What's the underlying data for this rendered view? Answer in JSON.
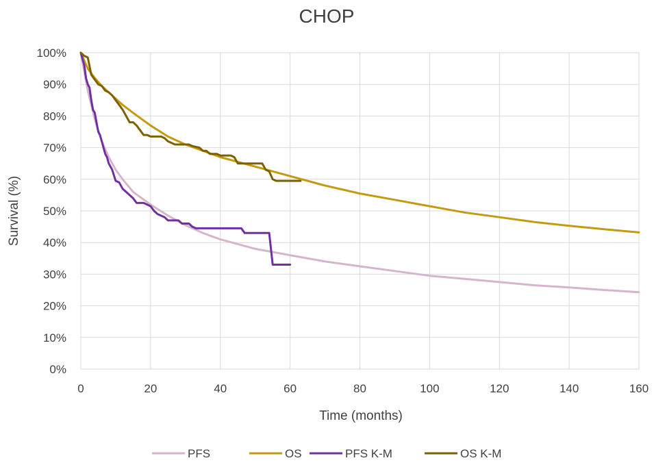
{
  "chart_data": {
    "type": "line",
    "title": "CHOP",
    "xlabel": "Time (months)",
    "ylabel": "Survival (%)",
    "xlim": [
      0,
      160
    ],
    "ylim": [
      0,
      100
    ],
    "x_ticks": [
      0,
      20,
      40,
      60,
      80,
      100,
      120,
      140,
      160
    ],
    "y_ticks": [
      0,
      10,
      20,
      30,
      40,
      50,
      60,
      70,
      80,
      90,
      100
    ],
    "y_tick_suffix": "%",
    "grid": true,
    "legend_position": "bottom",
    "series": [
      {
        "name": "PFS",
        "color": "#d5b4cc",
        "points": [
          [
            0,
            100
          ],
          [
            2,
            88
          ],
          [
            4,
            79
          ],
          [
            6,
            72
          ],
          [
            8,
            67
          ],
          [
            10,
            63
          ],
          [
            12,
            60
          ],
          [
            15,
            56
          ],
          [
            20,
            52
          ],
          [
            25,
            48.5
          ],
          [
            30,
            45.5
          ],
          [
            35,
            43
          ],
          [
            40,
            41
          ],
          [
            50,
            38
          ],
          [
            60,
            36
          ],
          [
            70,
            34
          ],
          [
            80,
            32.5
          ],
          [
            90,
            31
          ],
          [
            100,
            29.5
          ],
          [
            110,
            28.5
          ],
          [
            120,
            27.5
          ],
          [
            130,
            26.5
          ],
          [
            140,
            25.8
          ],
          [
            150,
            25
          ],
          [
            160,
            24.3
          ]
        ]
      },
      {
        "name": "OS",
        "color": "#c49a10",
        "points": [
          [
            0,
            100
          ],
          [
            2,
            95
          ],
          [
            4,
            92
          ],
          [
            6,
            89.5
          ],
          [
            8,
            87.5
          ],
          [
            10,
            85.5
          ],
          [
            12,
            83.5
          ],
          [
            15,
            81
          ],
          [
            20,
            77
          ],
          [
            25,
            73.5
          ],
          [
            30,
            71
          ],
          [
            35,
            69
          ],
          [
            40,
            67
          ],
          [
            50,
            64
          ],
          [
            60,
            61
          ],
          [
            70,
            58
          ],
          [
            80,
            55.5
          ],
          [
            90,
            53.5
          ],
          [
            100,
            51.5
          ],
          [
            110,
            49.5
          ],
          [
            120,
            48
          ],
          [
            130,
            46.5
          ],
          [
            140,
            45.3
          ],
          [
            150,
            44.2
          ],
          [
            160,
            43.2
          ]
        ]
      },
      {
        "name": "PFS K-M",
        "color": "#7030a0",
        "points": [
          [
            0,
            100
          ],
          [
            1,
            96
          ],
          [
            1.5,
            92
          ],
          [
            2,
            90
          ],
          [
            2.5,
            89
          ],
          [
            3,
            85
          ],
          [
            3.5,
            82
          ],
          [
            4,
            81
          ],
          [
            4.5,
            78
          ],
          [
            5,
            75
          ],
          [
            5.5,
            74
          ],
          [
            6,
            72
          ],
          [
            6.5,
            70
          ],
          [
            7,
            68
          ],
          [
            7.5,
            67
          ],
          [
            8,
            65
          ],
          [
            9,
            63
          ],
          [
            10,
            59.5
          ],
          [
            11,
            59
          ],
          [
            12,
            57
          ],
          [
            13,
            56
          ],
          [
            14,
            55
          ],
          [
            15,
            54
          ],
          [
            16,
            52.5
          ],
          [
            18,
            52.5
          ],
          [
            20,
            51.5
          ],
          [
            21,
            50
          ],
          [
            22,
            49
          ],
          [
            24,
            48
          ],
          [
            25,
            47
          ],
          [
            28,
            47
          ],
          [
            29,
            46
          ],
          [
            31,
            46
          ],
          [
            32,
            45
          ],
          [
            33,
            44.5
          ],
          [
            46,
            44.5
          ],
          [
            47,
            43
          ],
          [
            54,
            43
          ],
          [
            55,
            33
          ],
          [
            60,
            33
          ]
        ]
      },
      {
        "name": "OS K-M",
        "color": "#7f6000",
        "points": [
          [
            0,
            100
          ],
          [
            1,
            99
          ],
          [
            2,
            98.5
          ],
          [
            3,
            93
          ],
          [
            4,
            91.5
          ],
          [
            5,
            90
          ],
          [
            6,
            89.5
          ],
          [
            7,
            88
          ],
          [
            8,
            87.5
          ],
          [
            9,
            86.5
          ],
          [
            10,
            85
          ],
          [
            11,
            83.5
          ],
          [
            12,
            82
          ],
          [
            13,
            80
          ],
          [
            14,
            78
          ],
          [
            15,
            78
          ],
          [
            16,
            77
          ],
          [
            17,
            75.5
          ],
          [
            18,
            74
          ],
          [
            19,
            74
          ],
          [
            20,
            73.5
          ],
          [
            23,
            73.5
          ],
          [
            24,
            73
          ],
          [
            25,
            72
          ],
          [
            27,
            71
          ],
          [
            31,
            71
          ],
          [
            32,
            70.5
          ],
          [
            34,
            70
          ],
          [
            35,
            69
          ],
          [
            36,
            69
          ],
          [
            37,
            68
          ],
          [
            39,
            68
          ],
          [
            40,
            67.5
          ],
          [
            41,
            67.5
          ],
          [
            43,
            67.5
          ],
          [
            44,
            67
          ],
          [
            45,
            65
          ],
          [
            52,
            65
          ],
          [
            53,
            63
          ],
          [
            54,
            62.5
          ],
          [
            55,
            60
          ],
          [
            56,
            59.5
          ],
          [
            63,
            59.5
          ]
        ]
      }
    ]
  }
}
